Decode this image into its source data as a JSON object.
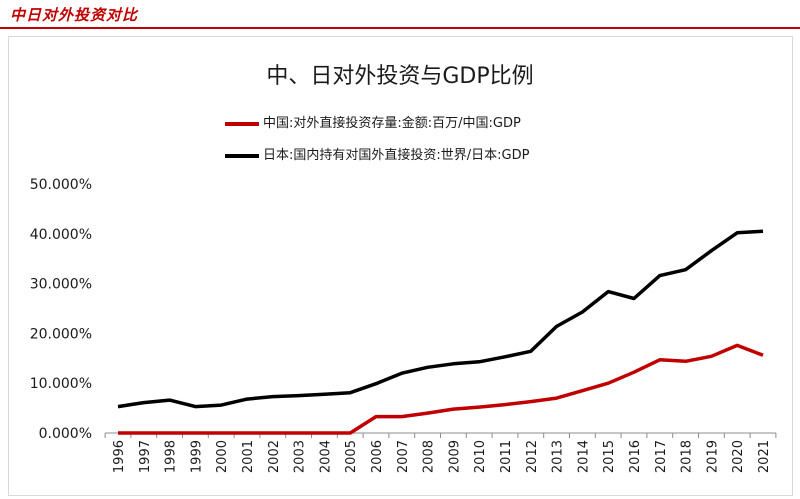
{
  "header": {
    "section_title": "中日对外投资对比"
  },
  "chart_data": {
    "type": "line",
    "title": "中、日对外投资与GDP比例",
    "xlabel": "",
    "ylabel": "",
    "categories": [
      "1996",
      "1997",
      "1998",
      "1999",
      "2000",
      "2001",
      "2002",
      "2003",
      "2004",
      "2005",
      "2006",
      "2007",
      "2008",
      "2009",
      "2010",
      "2011",
      "2012",
      "2013",
      "2014",
      "2015",
      "2016",
      "2017",
      "2018",
      "2019",
      "2020",
      "2021"
    ],
    "ylim": [
      0,
      50
    ],
    "yticks": [
      "0.000%",
      "10.000%",
      "20.000%",
      "30.000%",
      "40.000%",
      "50.000%"
    ],
    "grid": false,
    "legend_position": "top",
    "series": [
      {
        "name": "中国:对外直接投资存量:金额:百万/中国:GDP",
        "color": "#c00000",
        "values": [
          0,
          0,
          0,
          0,
          0,
          0,
          0,
          0,
          0,
          0,
          3.3,
          3.3,
          4.0,
          4.8,
          5.2,
          5.7,
          6.3,
          7.0,
          8.5,
          10.0,
          12.2,
          14.7,
          14.4,
          15.4,
          17.6,
          15.6
        ]
      },
      {
        "name": "日本:国内持有对国外直接投资:世界/日本:GDP",
        "color": "#000000",
        "values": [
          5.3,
          6.1,
          6.6,
          5.3,
          5.6,
          6.8,
          7.3,
          7.5,
          7.8,
          8.1,
          9.9,
          12.0,
          13.2,
          13.9,
          14.3,
          15.3,
          16.4,
          21.4,
          24.3,
          28.4,
          27.0,
          31.6,
          32.8,
          36.6,
          40.2,
          40.5
        ]
      }
    ]
  }
}
